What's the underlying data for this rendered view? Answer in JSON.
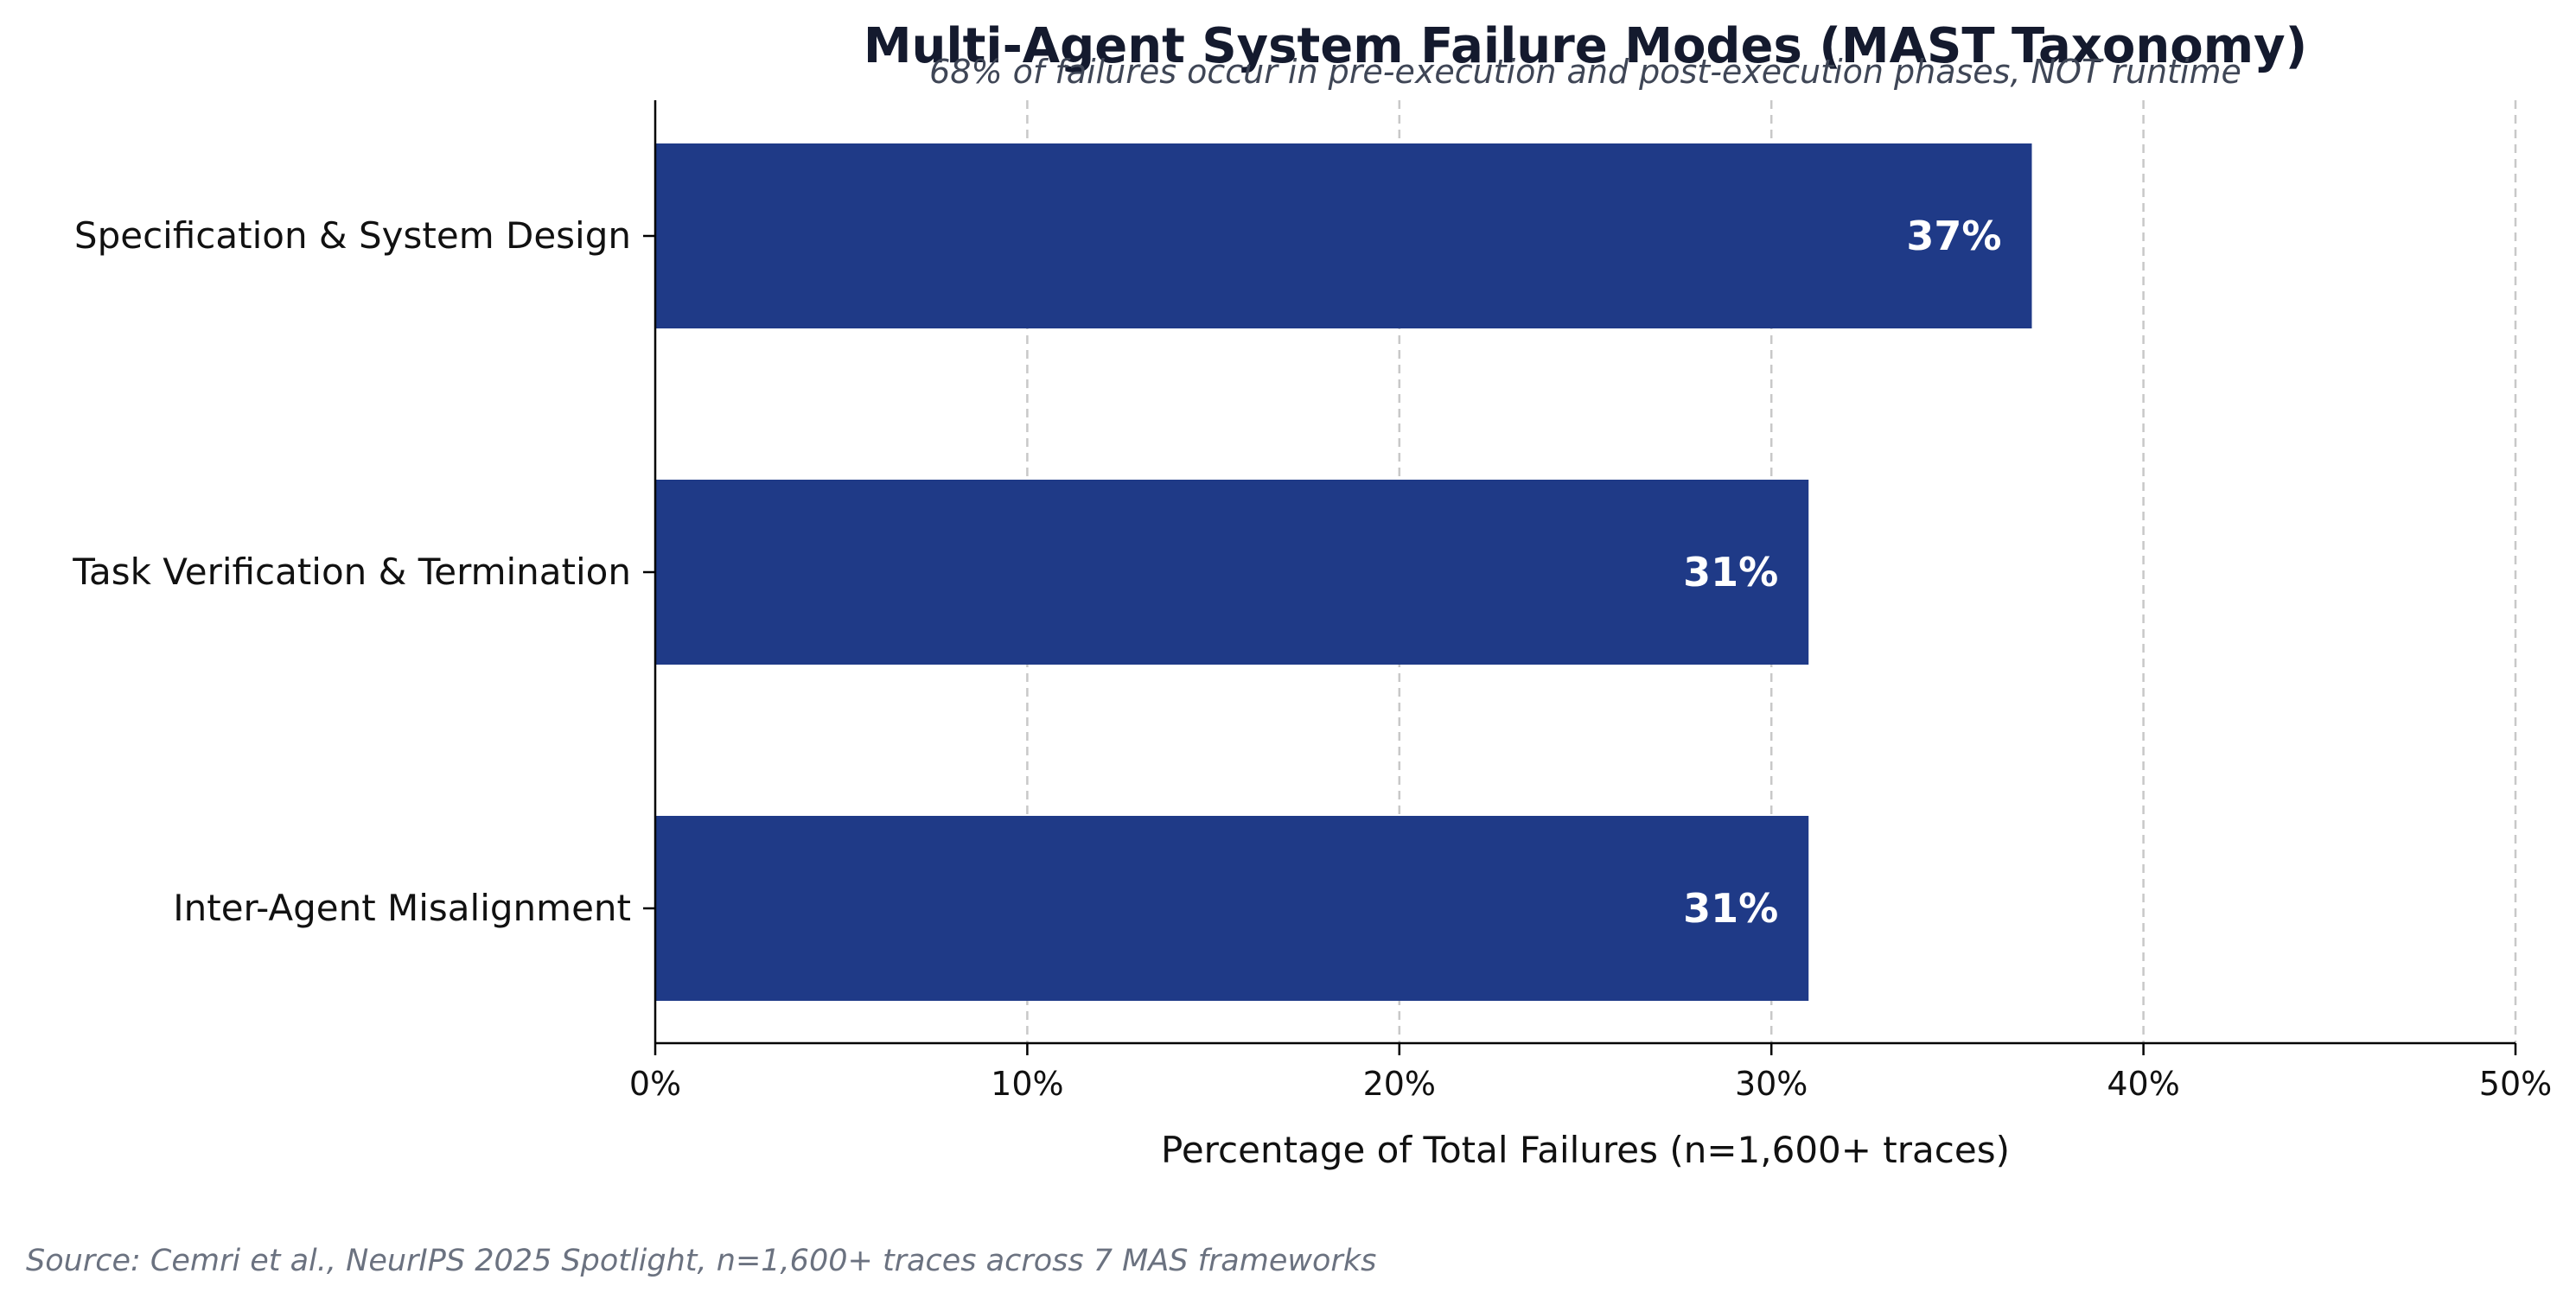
{
  "chart_data": {
    "type": "bar",
    "orientation": "horizontal",
    "title": "Multi-Agent System Failure Modes (MAST Taxonomy)",
    "subtitle": "68% of failures occur in pre-execution and post-execution phases, NOT runtime",
    "categories": [
      "Specification & System Design",
      "Task Verification & Termination",
      "Inter-Agent Misalignment"
    ],
    "values": [
      37,
      31,
      31
    ],
    "value_labels": [
      "37%",
      "31%",
      "31%"
    ],
    "xlabel": "Percentage of Total Failures (n=1,600+ traces)",
    "ylabel": "",
    "xlim": [
      0,
      50
    ],
    "xticks": [
      0,
      10,
      20,
      30,
      40,
      50
    ],
    "xtick_labels": [
      "0%",
      "10%",
      "20%",
      "30%",
      "40%",
      "50%"
    ],
    "grid": "x, dashed",
    "bar_color": "#1f3a87",
    "source": "Source: Cemri et al., NeurIPS 2025 Spotlight, n=1,600+ traces across 7 MAS frameworks"
  }
}
